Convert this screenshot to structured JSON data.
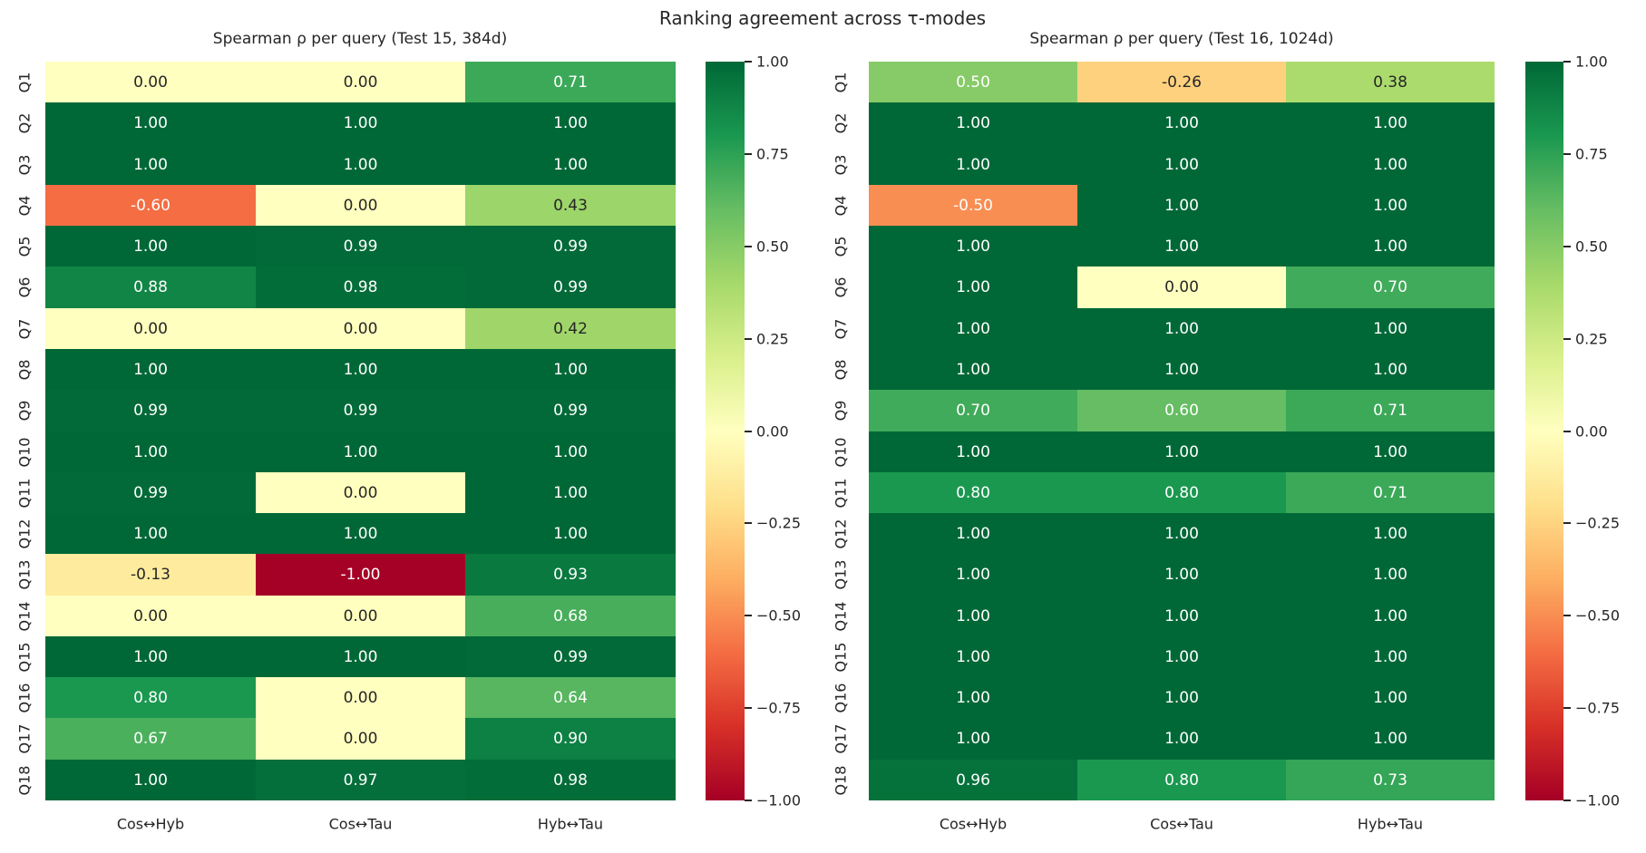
{
  "title": "Ranking agreement across τ-modes",
  "colormap_stops": [
    "#a50026",
    "#d73027",
    "#f46d43",
    "#fdae61",
    "#fee08b",
    "#ffffbf",
    "#d9ef8b",
    "#a6d96a",
    "#66bd63",
    "#1a9850",
    "#006837"
  ],
  "chart_data": [
    {
      "type": "heatmap",
      "title": "Spearman ρ per query (Test 15, 384d)",
      "colormap": "RdYlGn",
      "vmin": -1.0,
      "vmax": 1.0,
      "columns": [
        "Cos↔Hyb",
        "Cos↔Tau",
        "Hyb↔Tau"
      ],
      "rows": [
        "Q1",
        "Q2",
        "Q3",
        "Q4",
        "Q5",
        "Q6",
        "Q7",
        "Q8",
        "Q9",
        "Q10",
        "Q11",
        "Q12",
        "Q13",
        "Q14",
        "Q15",
        "Q16",
        "Q17",
        "Q18"
      ],
      "values": [
        [
          0.0,
          0.0,
          0.71
        ],
        [
          1.0,
          1.0,
          1.0
        ],
        [
          1.0,
          1.0,
          1.0
        ],
        [
          -0.6,
          0.0,
          0.43
        ],
        [
          1.0,
          0.99,
          0.99
        ],
        [
          0.88,
          0.98,
          0.99
        ],
        [
          0.0,
          0.0,
          0.42
        ],
        [
          1.0,
          1.0,
          1.0
        ],
        [
          0.99,
          0.99,
          0.99
        ],
        [
          1.0,
          1.0,
          1.0
        ],
        [
          0.99,
          0.0,
          1.0
        ],
        [
          1.0,
          1.0,
          1.0
        ],
        [
          -0.13,
          -1.0,
          0.93
        ],
        [
          0.0,
          0.0,
          0.68
        ],
        [
          1.0,
          1.0,
          0.99
        ],
        [
          0.8,
          0.0,
          0.64
        ],
        [
          0.67,
          0.0,
          0.9
        ],
        [
          1.0,
          0.97,
          0.98
        ]
      ],
      "colorbar_ticks": [
        "1.00",
        "0.75",
        "0.50",
        "0.25",
        "0.00",
        "−0.25",
        "−0.50",
        "−0.75",
        "−1.00"
      ]
    },
    {
      "type": "heatmap",
      "title": "Spearman ρ per query (Test 16, 1024d)",
      "colormap": "RdYlGn",
      "vmin": -1.0,
      "vmax": 1.0,
      "columns": [
        "Cos↔Hyb",
        "Cos↔Tau",
        "Hyb↔Tau"
      ],
      "rows": [
        "Q1",
        "Q2",
        "Q3",
        "Q4",
        "Q5",
        "Q6",
        "Q7",
        "Q8",
        "Q9",
        "Q10",
        "Q11",
        "Q12",
        "Q13",
        "Q14",
        "Q15",
        "Q16",
        "Q17",
        "Q18"
      ],
      "values": [
        [
          0.5,
          -0.26,
          0.38
        ],
        [
          1.0,
          1.0,
          1.0
        ],
        [
          1.0,
          1.0,
          1.0
        ],
        [
          -0.5,
          1.0,
          1.0
        ],
        [
          1.0,
          1.0,
          1.0
        ],
        [
          1.0,
          0.0,
          0.7
        ],
        [
          1.0,
          1.0,
          1.0
        ],
        [
          1.0,
          1.0,
          1.0
        ],
        [
          0.7,
          0.6,
          0.71
        ],
        [
          1.0,
          1.0,
          1.0
        ],
        [
          0.8,
          0.8,
          0.71
        ],
        [
          1.0,
          1.0,
          1.0
        ],
        [
          1.0,
          1.0,
          1.0
        ],
        [
          1.0,
          1.0,
          1.0
        ],
        [
          1.0,
          1.0,
          1.0
        ],
        [
          1.0,
          1.0,
          1.0
        ],
        [
          1.0,
          1.0,
          1.0
        ],
        [
          0.96,
          0.8,
          0.73
        ]
      ],
      "colorbar_ticks": [
        "1.00",
        "0.75",
        "0.50",
        "0.25",
        "0.00",
        "−0.25",
        "−0.50",
        "−0.75",
        "−1.00"
      ]
    }
  ]
}
